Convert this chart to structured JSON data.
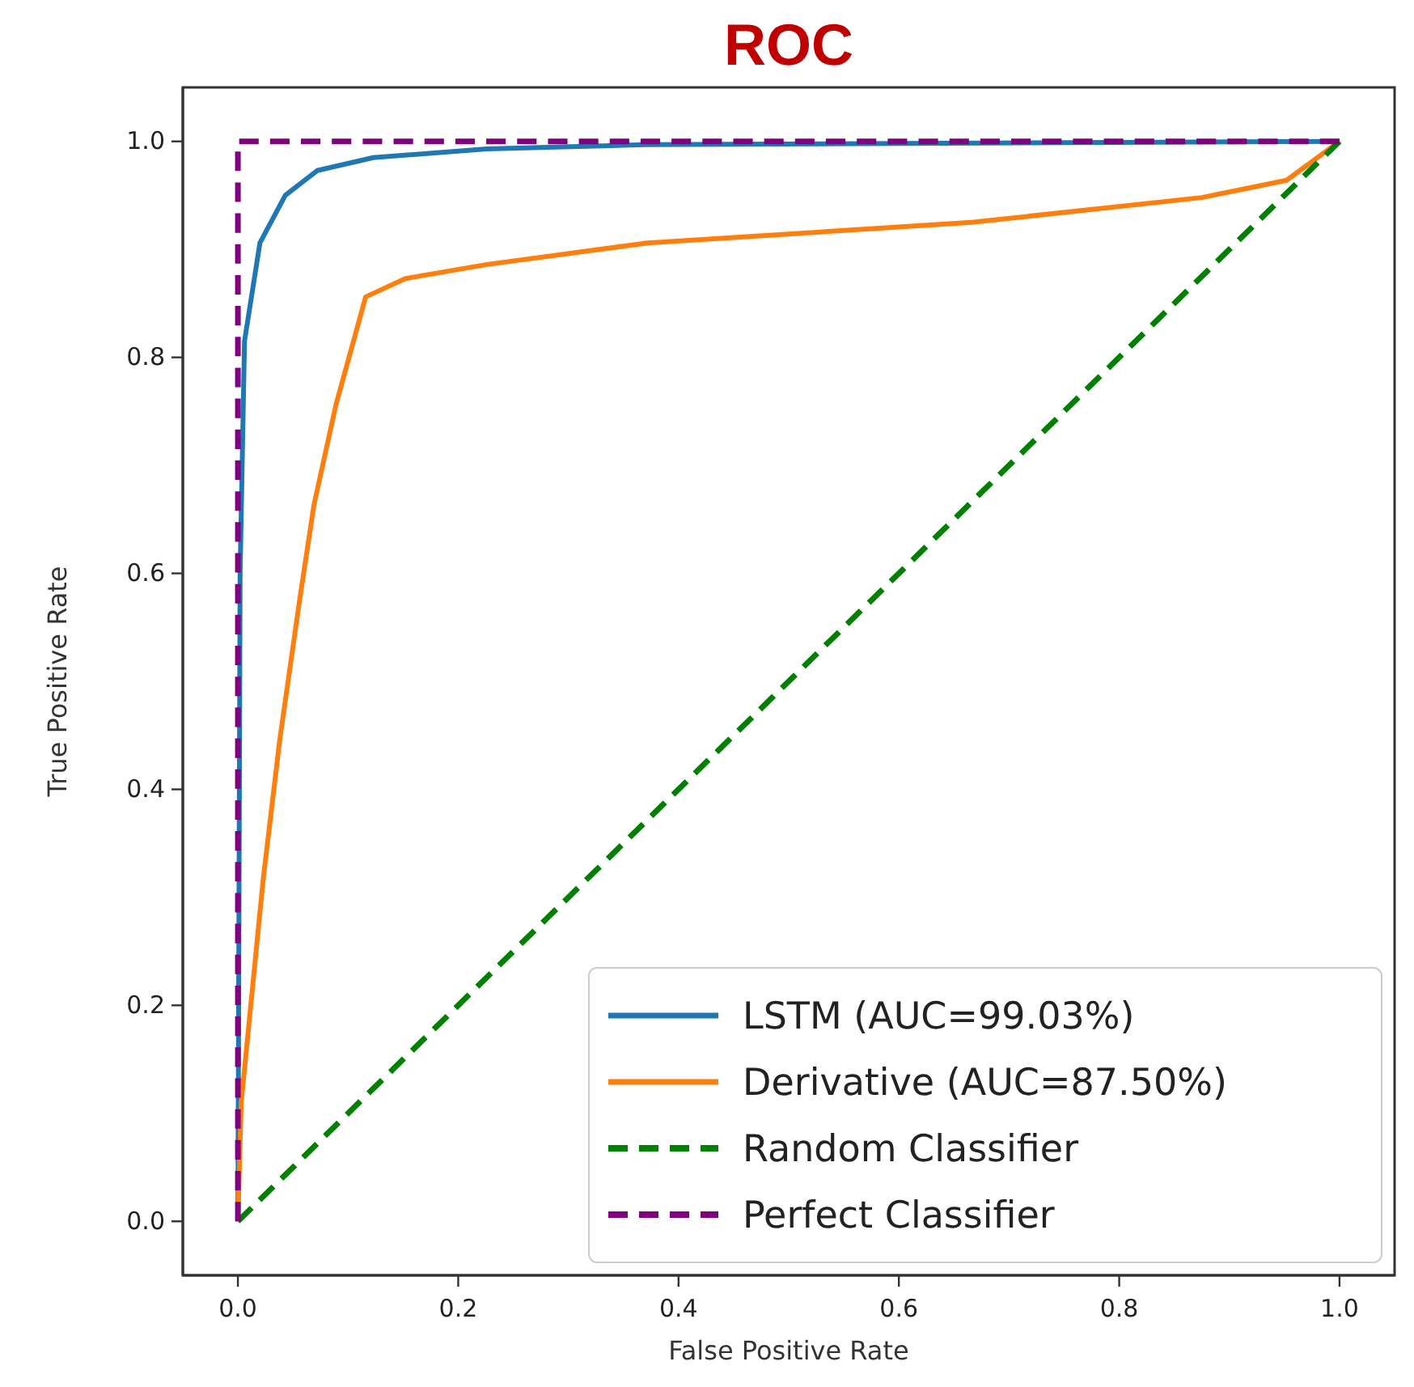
{
  "chart_data": {
    "type": "line",
    "title": "ROC",
    "xlabel": "False Positive Rate",
    "ylabel": "True Positive Rate",
    "xlim": [
      -0.05,
      1.05
    ],
    "ylim": [
      -0.05,
      1.05
    ],
    "xticks": [
      {
        "value": 0,
        "label": "0.0"
      },
      {
        "value": 0.2,
        "label": "0.2"
      },
      {
        "value": 0.4,
        "label": "0.4"
      },
      {
        "value": 0.6,
        "label": "0.6"
      },
      {
        "value": 0.8,
        "label": "0.8"
      },
      {
        "value": 1,
        "label": "1.0"
      }
    ],
    "yticks": [
      {
        "value": 0,
        "label": "0.0"
      },
      {
        "value": 0.2,
        "label": "0.2"
      },
      {
        "value": 0.4,
        "label": "0.4"
      },
      {
        "value": 0.6,
        "label": "0.6"
      },
      {
        "value": 0.8,
        "label": "0.8"
      },
      {
        "value": 1,
        "label": "1.0"
      }
    ],
    "grid": false,
    "legend": "bottom right",
    "series": [
      {
        "name": "LSTM (AUC=99.03%)",
        "color": "#1f77b4",
        "line_style": "solid",
        "x": [
          0,
          0.002,
          0.006,
          0.02,
          0.043,
          0.072,
          0.123,
          0.226,
          0.37,
          1
        ],
        "values": [
          0,
          0.6,
          0.815,
          0.906,
          0.95,
          0.973,
          0.985,
          0.993,
          0.997,
          1
        ]
      },
      {
        "name": "Derivative (AUC=87.50%)",
        "color": "#ff7f0e",
        "line_style": "solid",
        "x": [
          0,
          0.003,
          0.023,
          0.038,
          0.056,
          0.069,
          0.089,
          0.116,
          0.152,
          0.226,
          0.372,
          0.666,
          0.875,
          0.952,
          1
        ],
        "values": [
          0,
          0.11,
          0.317,
          0.446,
          0.575,
          0.663,
          0.756,
          0.856,
          0.873,
          0.886,
          0.906,
          0.925,
          0.948,
          0.964,
          1
        ]
      },
      {
        "name": "Random Classifier",
        "color": "#008000",
        "line_style": "dashed",
        "x": [
          0,
          1
        ],
        "values": [
          0,
          1
        ]
      },
      {
        "name": "Perfect Classifier",
        "color": "#800080",
        "line_style": "dashed",
        "x": [
          0,
          0,
          1
        ],
        "values": [
          0,
          1,
          1
        ]
      }
    ]
  }
}
